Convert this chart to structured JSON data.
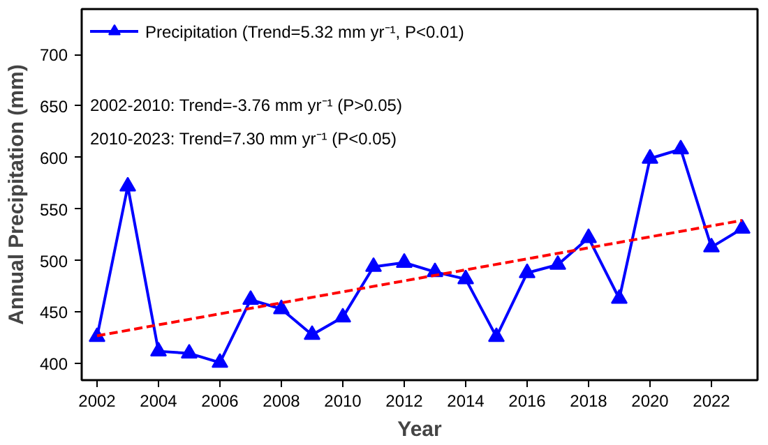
{
  "chart_data": {
    "type": "line",
    "xlabel": "Year",
    "ylabel": "Annual Precipitation (mm)",
    "x": [
      2002,
      2003,
      2004,
      2005,
      2006,
      2007,
      2008,
      2009,
      2010,
      2011,
      2012,
      2013,
      2014,
      2015,
      2016,
      2017,
      2018,
      2019,
      2020,
      2021,
      2022,
      2023
    ],
    "series": [
      {
        "name": "Precipitation (Trend=5.32 mm yr⁻¹, P<0.01)",
        "color": "#0000ff",
        "marker": "triangle",
        "line_style": "solid",
        "values": [
          426,
          572,
          412,
          410,
          401,
          462,
          453,
          428,
          445,
          494,
          498,
          489,
          482,
          426,
          488,
          496,
          522,
          463,
          599,
          608,
          513,
          531
        ]
      },
      {
        "type": "line",
        "color": "#ff0000",
        "marker": "none",
        "line_style": "dashed",
        "x": [
          2002,
          2023
        ],
        "values": [
          427,
          539
        ]
      }
    ],
    "annotations": [
      "2002-2010: Trend=-3.76 mm yr⁻¹ (P>0.05)",
      "2010-2023: Trend=7.30 mm yr⁻¹ (P<0.05)"
    ],
    "xlim": [
      2001.5,
      2023.5
    ],
    "ylim": [
      384,
      744
    ],
    "xticks": [
      2002,
      2004,
      2006,
      2008,
      2010,
      2012,
      2014,
      2016,
      2018,
      2020,
      2022
    ],
    "yticks": [
      400,
      450,
      500,
      550,
      600,
      650,
      700
    ],
    "grid": false,
    "legend": "top left"
  }
}
